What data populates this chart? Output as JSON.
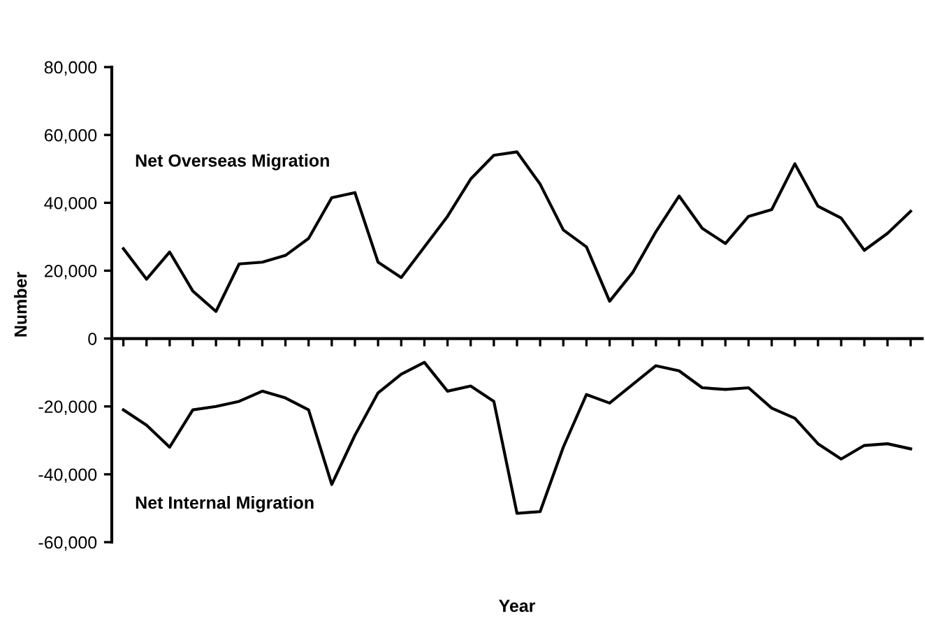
{
  "chart_data": {
    "type": "line",
    "xlabel": "Year",
    "ylabel": "Number",
    "categories": [
      null,
      null,
      null,
      null,
      null,
      null,
      null,
      null,
      null,
      null,
      null,
      null,
      null,
      null,
      null,
      null,
      null,
      null,
      null,
      null,
      null,
      null,
      null,
      null,
      null,
      null,
      null,
      null,
      null,
      null,
      null,
      null,
      null,
      null,
      null
    ],
    "series": [
      {
        "name": "Net Overseas Migration",
        "color": "#000000",
        "values": [
          26500,
          17500,
          25500,
          14000,
          8000,
          22000,
          22500,
          24500,
          29500,
          41500,
          43000,
          22500,
          18000,
          27000,
          36000,
          47000,
          54000,
          55000,
          45500,
          32000,
          27000,
          11000,
          19500,
          31500,
          42000,
          32500,
          28000,
          36000,
          38000,
          51500,
          39000,
          35500,
          26000,
          31000,
          37500
        ]
      },
      {
        "name": "Net Internal Migration",
        "color": "#000000",
        "values": [
          -21000,
          -25500,
          -32000,
          -21000,
          -20000,
          -18500,
          -15500,
          -17500,
          -21000,
          -43000,
          -28500,
          -16000,
          -10500,
          -7000,
          -15500,
          -14000,
          -18500,
          -51500,
          -51000,
          -32000,
          -16500,
          -19000,
          -13500,
          -8000,
          -9500,
          -14500,
          -15000,
          -14500,
          -20500,
          -23500,
          -31000,
          -35500,
          -31500,
          -31000,
          -32500
        ]
      }
    ],
    "ylim": [
      -60000,
      80000
    ],
    "yticks": [
      {
        "value": -60000,
        "label": "-60,000"
      },
      {
        "value": -40000,
        "label": "-40,000"
      },
      {
        "value": -20000,
        "label": "-20,000"
      },
      0,
      {
        "value": 20000,
        "label": "20,000"
      },
      {
        "value": 40000,
        "label": "40,000"
      },
      {
        "value": 60000,
        "label": "60,000"
      },
      {
        "value": 80000,
        "label": "80,000"
      }
    ],
    "legend": false,
    "marker": "none",
    "line_style": "solid"
  }
}
